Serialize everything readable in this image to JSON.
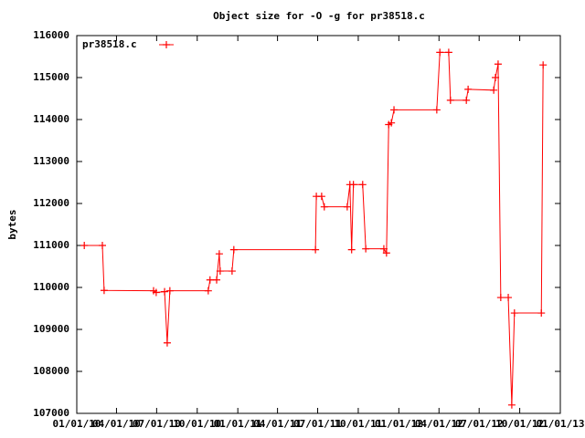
{
  "chart_data": {
    "type": "line",
    "title": "Object size for -O -g for pr38518.c",
    "ylabel": "bytes",
    "legend": "top-left",
    "xlim": [
      "2010-01-01",
      "2013-01-01"
    ],
    "xticks": [
      {
        "value": "2010-01-01",
        "label": "01/01/10"
      },
      {
        "value": "2010-04-01",
        "label": "04/01/10"
      },
      {
        "value": "2010-07-01",
        "label": "07/01/10"
      },
      {
        "value": "2010-10-01",
        "label": "10/01/10"
      },
      {
        "value": "2011-01-01",
        "label": "01/01/11"
      },
      {
        "value": "2011-04-01",
        "label": "04/01/11"
      },
      {
        "value": "2011-07-01",
        "label": "07/01/11"
      },
      {
        "value": "2011-10-01",
        "label": "10/01/11"
      },
      {
        "value": "2012-01-01",
        "label": "01/01/12"
      },
      {
        "value": "2012-04-01",
        "label": "04/01/12"
      },
      {
        "value": "2012-07-01",
        "label": "07/01/12"
      },
      {
        "value": "2012-10-01",
        "label": "10/01/12"
      },
      {
        "value": "2013-01-01",
        "label": "01/01/13"
      }
    ],
    "ylim": [
      107000,
      116000
    ],
    "yticks": [
      107000,
      108000,
      109000,
      110000,
      111000,
      112000,
      113000,
      114000,
      115000,
      116000
    ],
    "x": [
      "2010-01-18",
      "2010-02-28",
      "2010-03-04",
      "2010-06-24",
      "2010-06-30",
      "2010-07-19",
      "2010-07-25",
      "2010-07-31",
      "2010-10-26",
      "2010-10-30",
      "2010-11-14",
      "2010-11-20",
      "2010-11-22",
      "2010-12-19",
      "2010-12-23",
      "2011-06-26",
      "2011-06-28",
      "2011-07-10",
      "2011-07-16",
      "2011-09-06",
      "2011-09-12",
      "2011-09-16",
      "2011-09-20",
      "2011-10-11",
      "2011-10-18",
      "2011-11-28",
      "2011-12-04",
      "2011-12-09",
      "2011-12-15",
      "2011-12-21",
      "2012-03-27",
      "2012-04-03",
      "2012-04-23",
      "2012-04-27",
      "2012-06-02",
      "2012-06-06",
      "2012-08-03",
      "2012-08-07",
      "2012-08-13",
      "2012-08-19",
      "2012-09-05",
      "2012-09-13",
      "2012-09-19",
      "2012-11-19",
      "2012-11-23"
    ],
    "series": [
      {
        "name": "pr38518.c",
        "color": "#ff0000",
        "values": [
          111000,
          111000,
          109930,
          109920,
          109880,
          109900,
          108680,
          109920,
          109920,
          110180,
          110180,
          110800,
          110390,
          110390,
          110900,
          110900,
          112170,
          112170,
          111920,
          111920,
          112450,
          110900,
          112450,
          112450,
          110920,
          110920,
          110820,
          113880,
          113920,
          114230,
          114230,
          115600,
          115600,
          114460,
          114460,
          114720,
          114700,
          115000,
          115320,
          109760,
          109760,
          107200,
          109390,
          109390,
          115300
        ]
      }
    ]
  }
}
